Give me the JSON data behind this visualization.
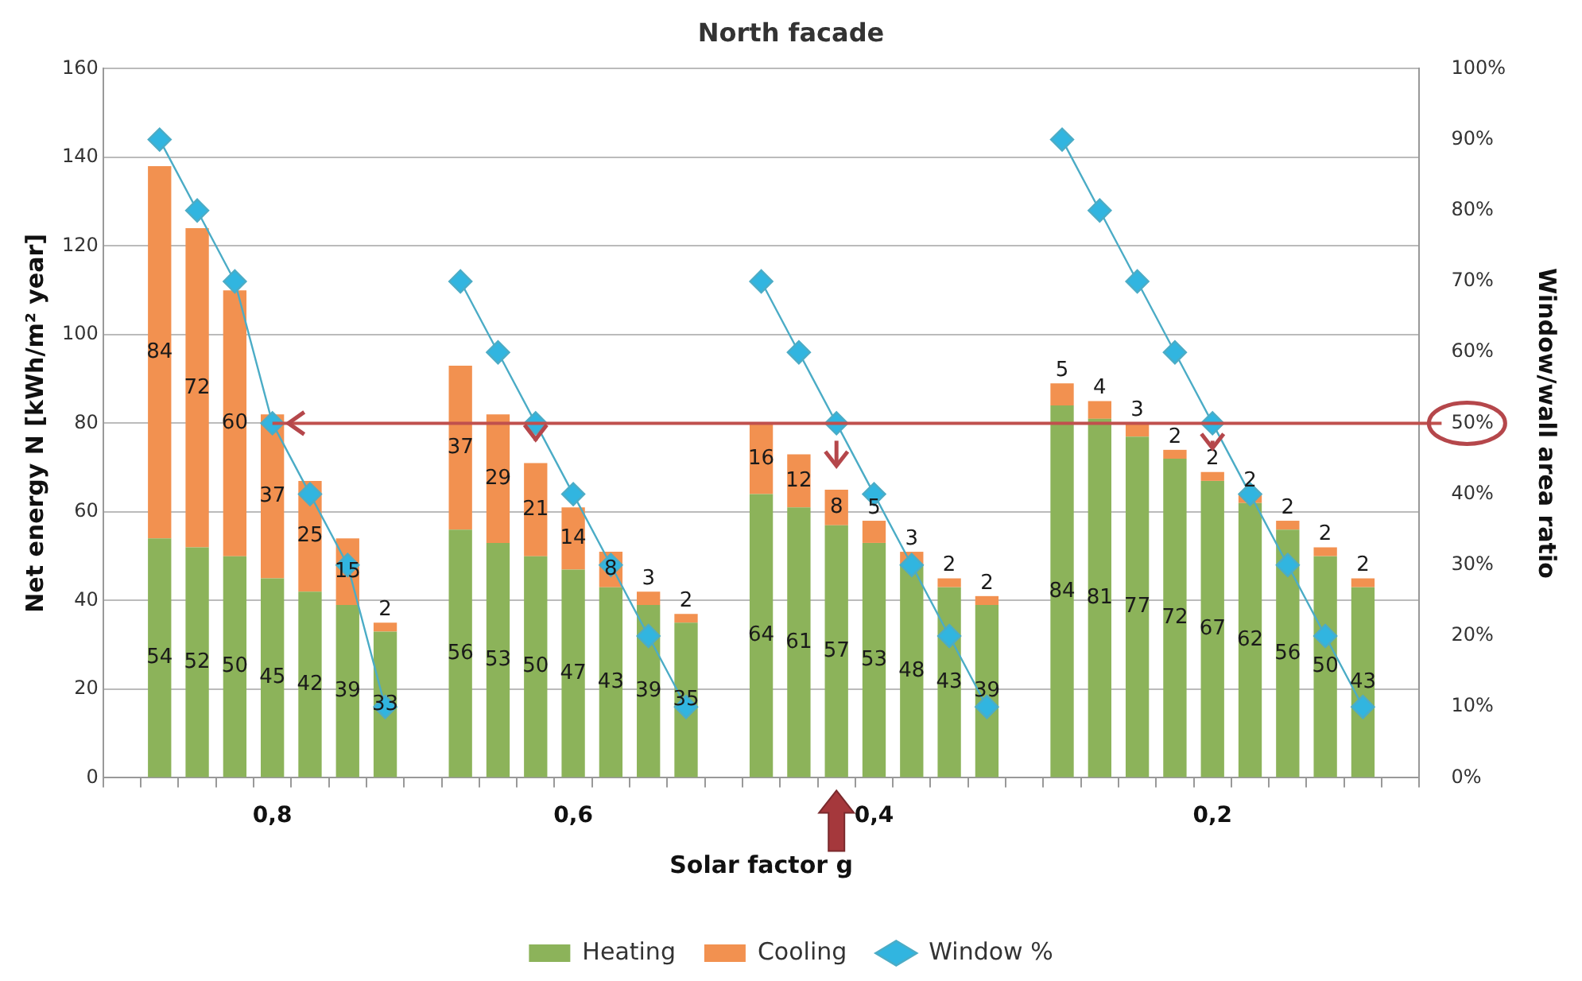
{
  "chart_data": {
    "type": "bar",
    "title": "North facade",
    "xlabel": "Solar factor g",
    "ylabel": "Net energy N [kWh/m² year]",
    "y2label": "Window/wall area ratio",
    "categories": [
      null,
      null,
      null,
      null,
      "0,8",
      null,
      null,
      null,
      null,
      null,
      null,
      null,
      "0,6",
      null,
      null,
      null,
      null,
      null,
      null,
      null,
      "0,4",
      null,
      null,
      null,
      null,
      null,
      null,
      null,
      null,
      "0,2",
      null,
      null,
      null,
      null,
      null
    ],
    "stacked": true,
    "series": [
      {
        "name": "Heating",
        "color": "#8cb35a",
        "values": [
          null,
          54,
          52,
          50,
          45,
          42,
          39,
          33,
          null,
          56,
          53,
          50,
          47,
          43,
          39,
          35,
          null,
          64,
          61,
          57,
          53,
          48,
          43,
          39,
          null,
          84,
          81,
          77,
          72,
          67,
          62,
          56,
          50,
          43,
          null
        ],
        "value_labels": [
          null,
          "54",
          "52",
          "50",
          "45",
          "42",
          "39",
          "33",
          null,
          "56",
          "53",
          "50",
          "47",
          "43",
          "39",
          "35",
          null,
          "64",
          "61",
          "57",
          "53",
          "48",
          "43",
          "39",
          null,
          "84",
          "81",
          "77",
          "72",
          "67",
          "62",
          "56",
          "50",
          "43",
          null
        ]
      },
      {
        "name": "Cooling",
        "color": "#f29150",
        "values": [
          null,
          84,
          72,
          60,
          37,
          25,
          15,
          2,
          null,
          37,
          29,
          21,
          14,
          8,
          3,
          2,
          null,
          16,
          12,
          8,
          5,
          3,
          2,
          2,
          null,
          5,
          4,
          3,
          2,
          2,
          2,
          2,
          2,
          2,
          null
        ],
        "value_labels": [
          null,
          "84",
          "72",
          "60",
          "37",
          "25",
          "15",
          "2",
          null,
          "37",
          "29",
          "21",
          "14",
          "8",
          "3",
          "2",
          null,
          "16",
          "12",
          "8",
          "5",
          "3",
          "2",
          "2",
          null,
          "5",
          "4",
          "3",
          "2",
          "2",
          "2",
          "2",
          "2",
          "2",
          null
        ]
      },
      {
        "name": "Window %",
        "type": "line",
        "axis": "y2",
        "color": "#4bacc6",
        "marker": "diamond",
        "values": [
          null,
          90,
          80,
          70,
          50,
          40,
          30,
          10,
          null,
          70,
          60,
          50,
          40,
          30,
          20,
          10,
          null,
          70,
          60,
          50,
          40,
          30,
          20,
          10,
          null,
          90,
          80,
          70,
          60,
          50,
          40,
          30,
          20,
          10,
          null
        ]
      }
    ],
    "ylim": [
      0,
      160
    ],
    "yticks": [
      0,
      20,
      40,
      60,
      80,
      100,
      120,
      140,
      160
    ],
    "y2lim": [
      0,
      100
    ],
    "y2ticks": [
      {
        "value": 0,
        "label": "0%"
      },
      {
        "value": 10,
        "label": "10%"
      },
      {
        "value": 20,
        "label": "20%"
      },
      {
        "value": 30,
        "label": "30%"
      },
      {
        "value": 40,
        "label": "40%"
      },
      {
        "value": 50,
        "label": "50%"
      },
      {
        "value": 60,
        "label": "60%"
      },
      {
        "value": 70,
        "label": "70%"
      },
      {
        "value": 80,
        "label": "80%"
      },
      {
        "value": 90,
        "label": "90%"
      },
      {
        "value": 100,
        "label": "100%"
      }
    ],
    "ref_lines": [
      {
        "axis": "y2",
        "value": 50,
        "color": "#c0504d"
      }
    ],
    "grid": "y",
    "legend": "bottom"
  }
}
